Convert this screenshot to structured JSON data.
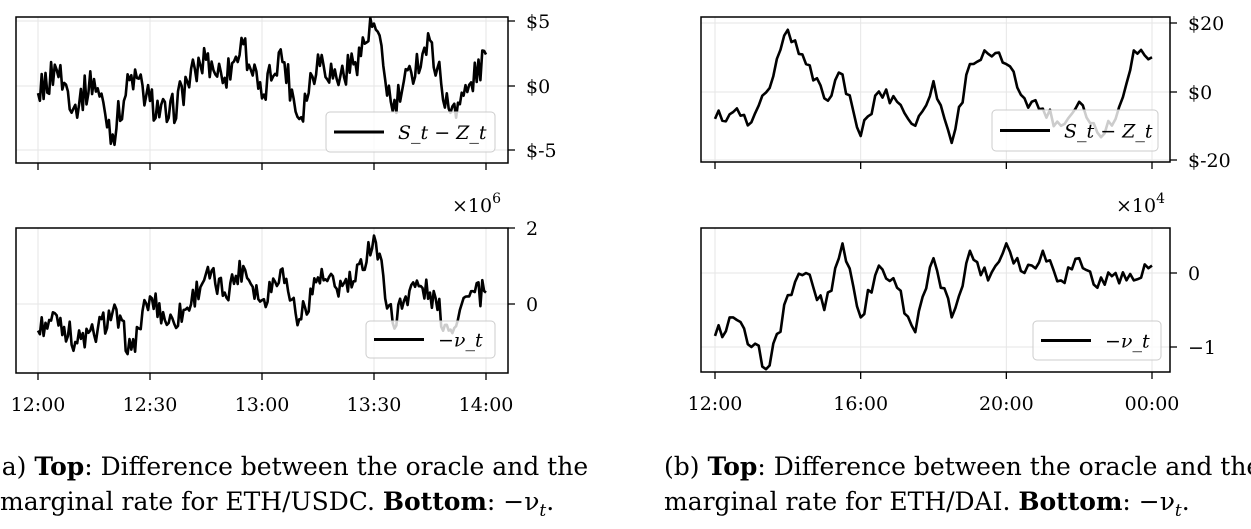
{
  "chart_data": [
    {
      "type": "line",
      "panel": "a-top",
      "x_unit": "time",
      "ylim": [
        -6,
        6
      ],
      "yticks": [
        -5,
        0,
        5
      ],
      "ytick_labels": [
        "$-5",
        "$0",
        "$5"
      ],
      "xticks": [
        "12:00",
        "12:30",
        "13:00",
        "13:30",
        "14:00"
      ],
      "xtick_labels_shown": false,
      "grid": true,
      "legend_position": "lower-right",
      "series": [
        {
          "name": "S_t − Z_t",
          "x": [
            "12:00",
            "12:05",
            "12:10",
            "12:15",
            "12:20",
            "12:25",
            "12:30",
            "12:35",
            "12:40",
            "12:45",
            "12:50",
            "12:55",
            "13:00",
            "13:05",
            "13:10",
            "13:15",
            "13:20",
            "13:25",
            "13:30",
            "13:35",
            "13:40",
            "13:45",
            "13:50",
            "13:55",
            "14:00"
          ],
          "values": [
            -0.6,
            1.2,
            -1.5,
            0.5,
            -3.8,
            0.8,
            -1.2,
            -2.5,
            0.3,
            2.0,
            0.6,
            3.2,
            -1.0,
            2.8,
            -2.6,
            2.4,
            0.5,
            1.8,
            4.8,
            -2.0,
            1.0,
            3.5,
            -1.8,
            -0.5,
            2.4
          ]
        }
      ]
    },
    {
      "type": "line",
      "panel": "a-bottom",
      "x_unit": "time",
      "ylim": [
        -2,
        2
      ],
      "yticks": [
        0,
        2
      ],
      "ytick_labels": [
        "0",
        "2"
      ],
      "exponent_label": "×10",
      "exponent_power": "6",
      "xticks": [
        "12:00",
        "12:30",
        "13:00",
        "13:30",
        "14:00"
      ],
      "grid": true,
      "legend_position": "lower-right",
      "series": [
        {
          "name": "−ν_t",
          "x": [
            "12:00",
            "12:05",
            "12:10",
            "12:15",
            "12:20",
            "12:25",
            "12:30",
            "12:35",
            "12:40",
            "12:45",
            "12:50",
            "12:55",
            "13:00",
            "13:05",
            "13:10",
            "13:15",
            "13:20",
            "13:25",
            "13:30",
            "13:35",
            "13:40",
            "13:45",
            "13:50",
            "13:55",
            "14:00"
          ],
          "values": [
            -0.7,
            -0.3,
            -1.0,
            -0.8,
            -0.2,
            -1.2,
            0.2,
            -0.5,
            -0.1,
            0.8,
            0.3,
            1.0,
            0.1,
            0.9,
            -0.4,
            0.7,
            0.4,
            0.6,
            1.8,
            -0.5,
            0.5,
            0.3,
            -0.7,
            0.2,
            0.3
          ]
        }
      ]
    },
    {
      "type": "line",
      "panel": "b-top",
      "x_unit": "time",
      "ylim": [
        -20,
        22
      ],
      "yticks": [
        -20,
        0,
        20
      ],
      "ytick_labels": [
        "$-20",
        "$0",
        "$20"
      ],
      "xticks": [
        "12:00",
        "16:00",
        "20:00",
        "00:00"
      ],
      "xtick_labels_shown": false,
      "grid": true,
      "legend_position": "lower-right",
      "series": [
        {
          "name": "S_t − Z_t",
          "x": [
            "12:00",
            "12:30",
            "13:00",
            "13:30",
            "14:00",
            "14:30",
            "15:00",
            "15:30",
            "16:00",
            "16:30",
            "17:00",
            "17:30",
            "18:00",
            "18:30",
            "19:00",
            "19:30",
            "20:00",
            "20:30",
            "21:00",
            "21:30",
            "22:00",
            "22:30",
            "23:00",
            "23:30",
            "00:00"
          ],
          "values": [
            -8,
            -6,
            -9,
            1,
            18,
            8,
            -2,
            5,
            -13,
            0,
            -3,
            -10,
            3,
            -15,
            8,
            11,
            8,
            -2,
            -5,
            -10,
            -3,
            -12,
            -8,
            12,
            10
          ]
        }
      ]
    },
    {
      "type": "line",
      "panel": "b-bottom",
      "x_unit": "time",
      "ylim": [
        -1.3,
        0.6
      ],
      "yticks": [
        -1,
        0
      ],
      "ytick_labels": [
        "−1",
        "0"
      ],
      "exponent_label": "×10",
      "exponent_power": "4",
      "xticks": [
        "12:00",
        "16:00",
        "20:00",
        "00:00"
      ],
      "grid": true,
      "legend_position": "lower-right",
      "series": [
        {
          "name": "−ν_t",
          "x": [
            "12:00",
            "12:30",
            "13:00",
            "13:30",
            "14:00",
            "14:30",
            "15:00",
            "15:30",
            "16:00",
            "16:30",
            "17:00",
            "17:30",
            "18:00",
            "18:30",
            "19:00",
            "19:30",
            "20:00",
            "20:30",
            "21:00",
            "21:30",
            "22:00",
            "22:30",
            "23:00",
            "23:30",
            "00:00"
          ],
          "values": [
            -0.85,
            -0.6,
            -1.0,
            -1.25,
            -0.3,
            0.0,
            -0.5,
            0.4,
            -0.6,
            0.1,
            -0.2,
            -0.8,
            0.2,
            -0.6,
            0.3,
            -0.1,
            0.4,
            0.0,
            0.3,
            -0.1,
            0.2,
            -0.2,
            0.0,
            -0.1,
            0.1
          ]
        }
      ]
    }
  ],
  "captions": {
    "a": {
      "prefix": "(a) ",
      "bold1": "Top",
      "text1": ":  Difference between the oracle and the",
      "text2": "marginal rate for ETH/USDC. ",
      "bold2": "Bottom",
      "text3": ": −ν",
      "sub": "t",
      "end": "."
    },
    "b": {
      "prefix": "(b) ",
      "bold1": "Top",
      "text1": ":  Difference between the oracle and the",
      "text2": "marginal rate for ETH/DAI. ",
      "bold2": "Bottom",
      "text3": ": −ν",
      "sub": "t",
      "end": "."
    }
  }
}
